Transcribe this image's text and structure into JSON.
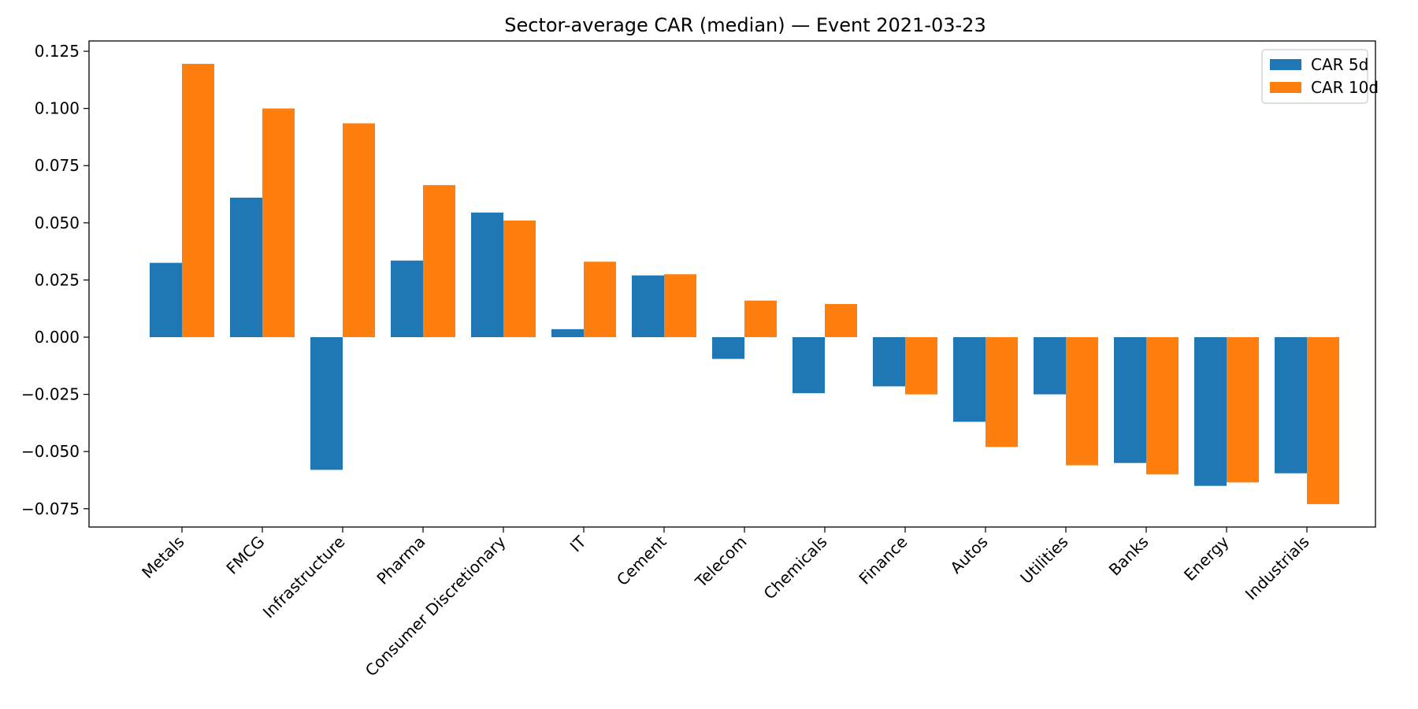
{
  "chart_data": {
    "type": "bar",
    "title": "Sector-average CAR (median) — Event 2021-03-23",
    "xlabel": "",
    "ylabel": "",
    "categories": [
      "Metals",
      "FMCG",
      "Infrastructure",
      "Pharma",
      "Consumer Discretionary",
      "IT",
      "Cement",
      "Telecom",
      "Chemicals",
      "Finance",
      "Autos",
      "Utilities",
      "Banks",
      "Energy",
      "Industrials"
    ],
    "series": [
      {
        "name": "CAR 5d",
        "color": "#1f77b4",
        "values": [
          0.0325,
          0.061,
          -0.058,
          0.0335,
          0.0545,
          0.0035,
          0.027,
          -0.0095,
          -0.0245,
          -0.0215,
          -0.037,
          -0.025,
          -0.055,
          -0.065,
          -0.0595
        ]
      },
      {
        "name": "CAR 10d",
        "color": "#ff7f0e",
        "values": [
          0.1195,
          0.1,
          0.0935,
          0.0665,
          0.051,
          0.033,
          0.0275,
          0.016,
          0.0145,
          -0.025,
          -0.048,
          -0.056,
          -0.06,
          -0.0635,
          -0.073
        ]
      }
    ],
    "ylim": [
      -0.083,
      0.1295
    ],
    "yticks": [
      -0.075,
      -0.05,
      -0.025,
      0.0,
      0.025,
      0.05,
      0.075,
      0.1,
      0.125
    ],
    "ytick_labels": [
      "−0.075",
      "−0.050",
      "−0.025",
      "0.000",
      "0.025",
      "0.050",
      "0.075",
      "0.100",
      "0.125"
    ],
    "grid": false,
    "legend_position": "top-right"
  }
}
